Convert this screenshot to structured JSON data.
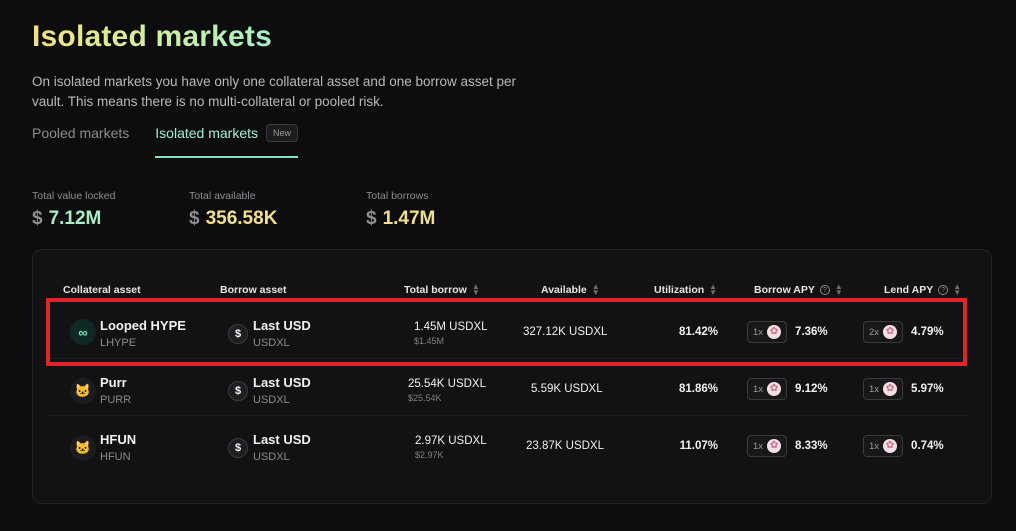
{
  "header": {
    "title": "Isolated markets",
    "subtitle": "On isolated markets you have only one collateral asset and one borrow asset per vault. This means there is no multi-collateral or pooled risk."
  },
  "tabs": [
    {
      "label": "Pooled markets",
      "active": false
    },
    {
      "label": "Isolated markets",
      "active": true,
      "badge": "New"
    }
  ],
  "stats": [
    {
      "label": "Total value locked",
      "currency": "$",
      "value": "7.12M"
    },
    {
      "label": "Total available",
      "currency": "$",
      "value": "356.58K"
    },
    {
      "label": "Total borrows",
      "currency": "$",
      "value": "1.47M"
    }
  ],
  "table": {
    "columns": {
      "collateral": "Collateral asset",
      "borrow": "Borrow asset",
      "total_borrow": "Total borrow",
      "available": "Available",
      "utilization": "Utilization",
      "borrow_apy": "Borrow APY",
      "lend_apy": "Lend APY"
    },
    "rows": [
      {
        "collateral_name": "Looped HYPE",
        "collateral_symbol": "LHYPE",
        "collateral_icon": "infinity-icon",
        "borrow_name": "Last USD",
        "borrow_symbol": "USDXL",
        "borrow_icon": "dollar-coin-icon",
        "total_borrow": "1.45M USDXL",
        "total_borrow_usd": "$1.45M",
        "available": "327.12K USDXL",
        "utilization": "81.42%",
        "borrow_lev": "1x",
        "borrow_apy": "7.36%",
        "lend_lev": "2x",
        "lend_apy": "4.79%"
      },
      {
        "collateral_name": "Purr",
        "collateral_symbol": "PURR",
        "collateral_icon": "cat-icon",
        "borrow_name": "Last USD",
        "borrow_symbol": "USDXL",
        "borrow_icon": "dollar-coin-icon",
        "total_borrow": "25.54K USDXL",
        "total_borrow_usd": "$25.54K",
        "available": "5.59K USDXL",
        "utilization": "81.86%",
        "borrow_lev": "1x",
        "borrow_apy": "9.12%",
        "lend_lev": "1x",
        "lend_apy": "5.97%"
      },
      {
        "collateral_name": "HFUN",
        "collateral_symbol": "HFUN",
        "collateral_icon": "cat-icon",
        "borrow_name": "Last USD",
        "borrow_symbol": "USDXL",
        "borrow_icon": "dollar-coin-icon",
        "total_borrow": "2.97K USDXL",
        "total_borrow_usd": "$2.97K",
        "available": "23.87K USDXL",
        "utilization": "11.07%",
        "borrow_lev": "1x",
        "borrow_apy": "8.33%",
        "lend_lev": "1x",
        "lend_apy": "0.74%"
      }
    ]
  },
  "colors": {
    "background": "#0d0d0f",
    "accent": "#7fe6c0",
    "highlight_box": "#e0242a"
  }
}
